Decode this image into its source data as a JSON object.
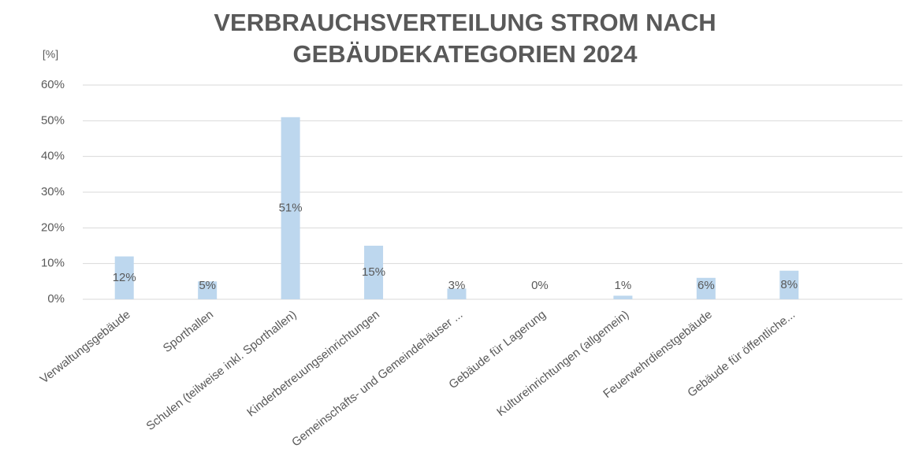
{
  "chart_data": {
    "type": "bar",
    "title": [
      "VERBRAUCHSVERTEILUNG STROM NACH",
      "GEBÄUDEKATEGORIEN 2024"
    ],
    "y_label": "[%]",
    "categories": [
      "Verwaltungsgebäude",
      "Sporthallen",
      "Schulen (teilweise inkl. Sporthallen)",
      "Kinderbetreuungseinrichtungen",
      "Gemeinschafts- und Gemeindehäuser ...",
      "Gebäude für Lagerung",
      "Kultureinrichtungen (allgemein)",
      "Feuerwehrdienstgebäude",
      "Gebäude für öffentliche..."
    ],
    "values": [
      12,
      5,
      51,
      15,
      3,
      0,
      1,
      6,
      8
    ],
    "value_labels": [
      "12%",
      "5%",
      "51%",
      "15%",
      "3%",
      "0%",
      "1%",
      "6%",
      "8%"
    ],
    "color": "#bdd7ee",
    "ylim": [
      0,
      60
    ],
    "yticks": [
      {
        "value": 0,
        "label": "0%"
      },
      {
        "value": 10,
        "label": "10%"
      },
      {
        "value": 20,
        "label": "20%"
      },
      {
        "value": 30,
        "label": "30%"
      },
      {
        "value": 40,
        "label": "40%"
      },
      {
        "value": 50,
        "label": "50%"
      },
      {
        "value": 60,
        "label": "60%"
      }
    ],
    "grid": true
  }
}
